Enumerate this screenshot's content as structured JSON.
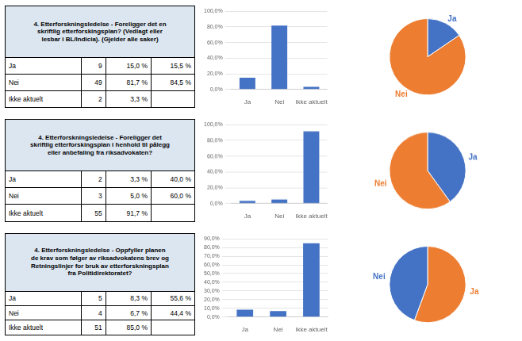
{
  "chart_data": [
    {
      "type": "table",
      "title": [
        "4. Etterforskningsledelse  - Foreligger det en",
        "skriftlig etterforskingsplan? (Vedlagt eller",
        "lesbar i BL/Indicia). (Gjelder alle saker)"
      ],
      "cells": [
        [
          "Ja",
          "9",
          "15,0 %",
          "15,5 %"
        ],
        [
          "Nei",
          "49",
          "81,7 %",
          "84,5 %"
        ],
        [
          "Ikke aktuelt",
          "2",
          "3,3 %",
          null
        ]
      ],
      "color": "#dce6f1"
    },
    {
      "type": "bar",
      "categories": [
        "Ja",
        "Nei",
        "Ikke aktuelt"
      ],
      "values": [
        15.0,
        81.7,
        3.3
      ],
      "color": "#4472c4",
      "ylim": [
        0,
        100
      ],
      "yticks": [
        {
          "value": 0,
          "label": "0,0%"
        },
        {
          "value": 20,
          "label": "20,0%"
        },
        {
          "value": 40,
          "label": "40,0%"
        },
        {
          "value": 60,
          "label": "60,0%"
        },
        {
          "value": 80,
          "label": "80,0%"
        },
        {
          "value": 100,
          "label": "100,0%"
        }
      ],
      "grid": true
    },
    {
      "type": "pie",
      "categories": [
        "Ja",
        "Nei"
      ],
      "values": [
        15.5,
        84.5
      ],
      "colors": [
        "#4472c4",
        "#ed7d31"
      ]
    },
    {
      "type": "table",
      "title": [
        "4. Etterforskningsledelse  - Foreligger det",
        "skriftlig etterforskingsplan i henhold til pålegg",
        "eller anbefaling  fra riksadvokaten?"
      ],
      "cells": [
        [
          "Ja",
          "2",
          "3,3 %",
          "40,0 %"
        ],
        [
          "Nei",
          "3",
          "5,0 %",
          "60,0 %"
        ],
        [
          "Ikke aktuelt",
          "55",
          "91,7 %",
          null
        ]
      ],
      "color": "#dce6f1"
    },
    {
      "type": "bar",
      "categories": [
        "Ja",
        "Nei",
        "Ikke aktuelt"
      ],
      "values": [
        3.3,
        5.0,
        91.7
      ],
      "color": "#4472c4",
      "ylim": [
        0,
        100
      ],
      "yticks": [
        {
          "value": 0,
          "label": "0,0%"
        },
        {
          "value": 20,
          "label": "20,0%"
        },
        {
          "value": 40,
          "label": "40,0%"
        },
        {
          "value": 60,
          "label": "60,0%"
        },
        {
          "value": 80,
          "label": "80,0%"
        },
        {
          "value": 100,
          "label": "100,0%"
        }
      ],
      "grid": true
    },
    {
      "type": "pie",
      "categories": [
        "Ja",
        "Nei"
      ],
      "values": [
        40.0,
        60.0
      ],
      "colors": [
        "#4472c4",
        "#ed7d31"
      ]
    },
    {
      "type": "table",
      "title": [
        "4. Etterforskningsledelse  - Oppfyller planen",
        "de krav som følger av riksadvokatens brev og",
        "Retningslinjer for bruk av etterforskningsplan",
        "fra Politidirektoratet?"
      ],
      "cells": [
        [
          "Ja",
          "5",
          "8,3 %",
          "55,6 %"
        ],
        [
          "Nei",
          "4",
          "6,7 %",
          "44,4 %"
        ],
        [
          "Ikke aktuelt",
          "51",
          "85,0 %",
          null
        ]
      ],
      "color": "#dce6f1"
    },
    {
      "type": "bar",
      "categories": [
        "Ja",
        "Nei",
        "Ikke aktuelt"
      ],
      "values": [
        8.3,
        6.7,
        85.0
      ],
      "color": "#4472c4",
      "ylim": [
        0,
        90
      ],
      "yticks": [
        {
          "value": 0,
          "label": "0,0%"
        },
        {
          "value": 10,
          "label": "10,0%"
        },
        {
          "value": 20,
          "label": "20,0%"
        },
        {
          "value": 30,
          "label": "30,0%"
        },
        {
          "value": 40,
          "label": "40,0%"
        },
        {
          "value": 50,
          "label": "50,0%"
        },
        {
          "value": 60,
          "label": "60,0%"
        },
        {
          "value": 70,
          "label": "70,0%"
        },
        {
          "value": 80,
          "label": "80,0%"
        },
        {
          "value": 90,
          "label": "90,0%"
        }
      ],
      "grid": true
    },
    {
      "type": "pie",
      "categories": [
        "Ja",
        "Nei"
      ],
      "values": [
        55.6,
        44.4
      ],
      "colors": [
        "#ed7d31",
        "#4472c4"
      ]
    }
  ]
}
